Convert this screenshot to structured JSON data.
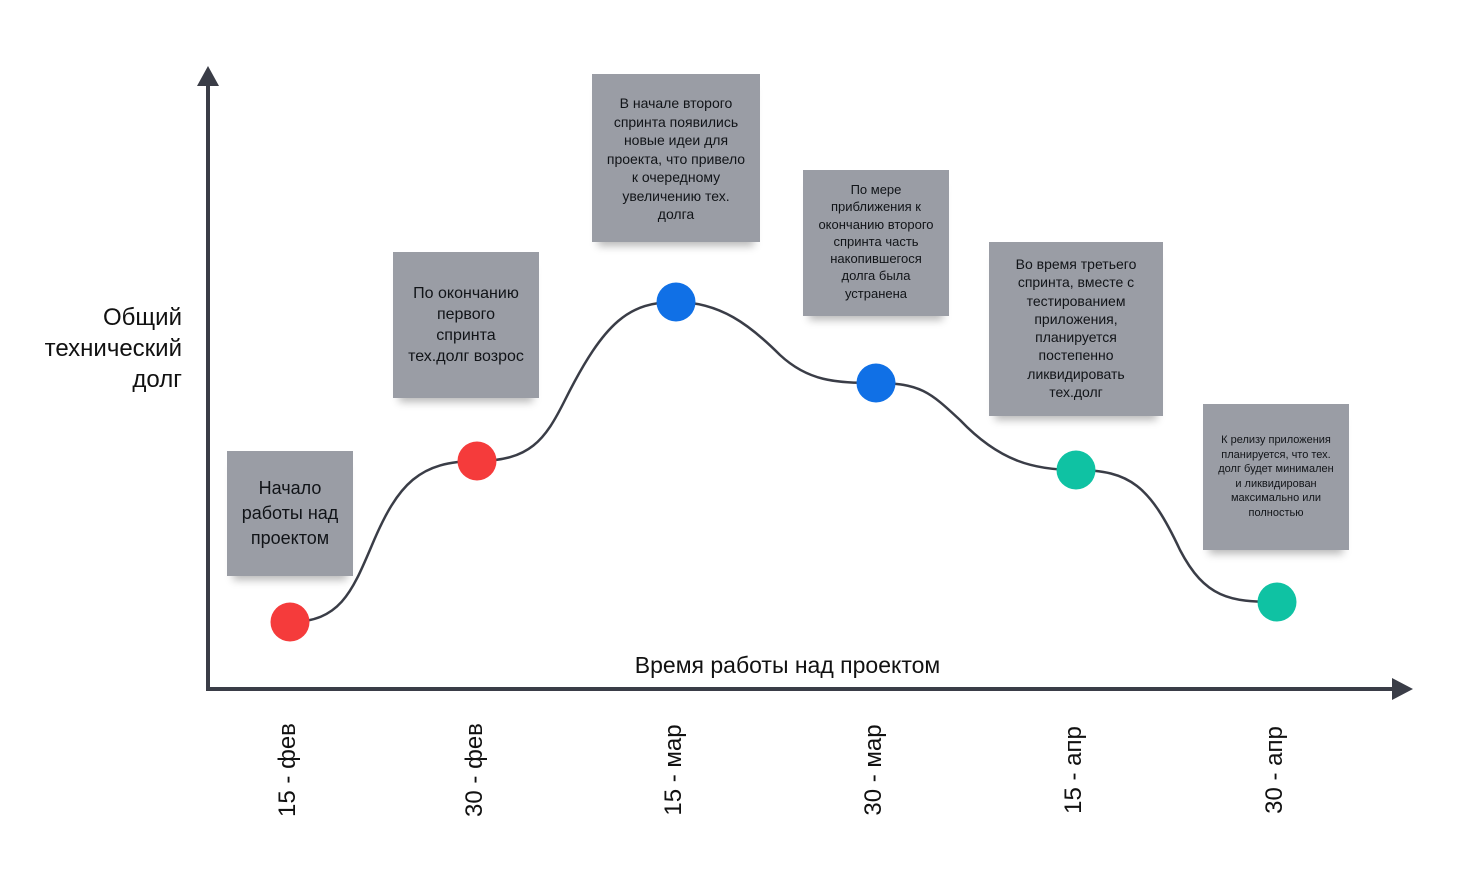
{
  "axes": {
    "y_label": "Общий\nтехнический\nдолг",
    "x_label": "Время работы над проектом",
    "x_ticks": [
      "15 - фев",
      "30 - фев",
      "15 - мар",
      "30 - мар",
      "15 - апр",
      "30 - апр"
    ]
  },
  "notes": [
    {
      "text": "Начало\nработы над\nпроектом"
    },
    {
      "text": "По окончанию\nпервого\nспринта\nтех.долг возрос"
    },
    {
      "text": "В начале второго\nспринта появились\nновые идеи для\nпроекта, что привело\nк очередному\nувеличению тех.\nдолга"
    },
    {
      "text": "По мере\nприближения к\nокончанию второго\nспринта часть\nнакопившегося\nдолга была\nустранена"
    },
    {
      "text": "Во время третьего\nспринта, вместе с\nтестированием\nприложения,\nпланируется\nпостепенно\nликвидировать\nтех.долг"
    },
    {
      "text": "К релизу приложения\nпланируется, что тех.\nдолг будет минимален\nи ликвидирован\nмаксимально или\nполностью"
    }
  ],
  "points": [
    {
      "color": "#f53b3b"
    },
    {
      "color": "#f53b3b"
    },
    {
      "color": "#1070e6"
    },
    {
      "color": "#1070e6"
    },
    {
      "color": "#0fc2a3"
    },
    {
      "color": "#0fc2a3"
    }
  ],
  "colors": {
    "axis": "#3a3d47",
    "curve": "#3a3d47",
    "note_bg": "#9a9da5"
  }
}
